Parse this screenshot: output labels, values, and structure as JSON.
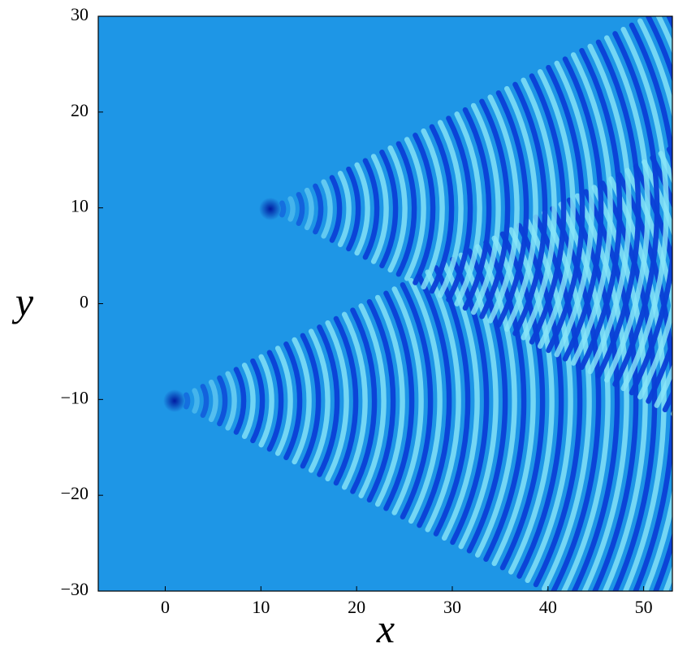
{
  "chart_data": {
    "type": "field",
    "xlabel": "x",
    "ylabel": "y",
    "xlim": [
      -7,
      53
    ],
    "ylim": [
      -30,
      30
    ],
    "xticks": [
      0,
      10,
      20,
      30,
      40,
      50
    ],
    "yticks": [
      {
        "value": -30,
        "label": "−30"
      },
      {
        "value": -20,
        "label": "−20"
      },
      {
        "value": -10,
        "label": "−10"
      },
      0,
      10,
      20,
      30
    ],
    "color": "#1e96e6"
  }
}
